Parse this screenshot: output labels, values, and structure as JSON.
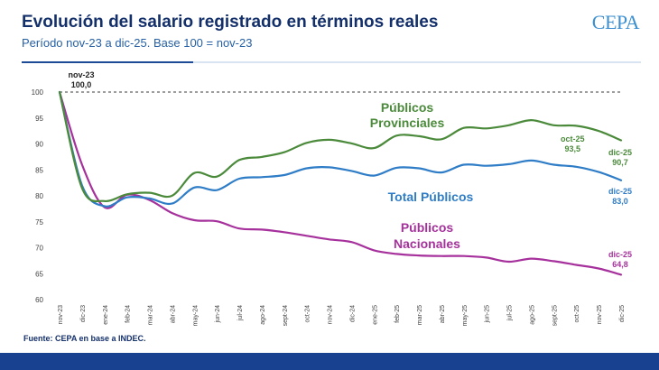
{
  "header": {
    "title": "Evolución del salario registrado en términos reales",
    "subtitle": "Período nov-23 a dic-25. Base 100 = nov-23",
    "logo_text": "CEPA"
  },
  "footer": {
    "source": "Fuente: CEPA en base a INDEC."
  },
  "colors": {
    "provinciales": "#4a8a3a",
    "total": "#2f7dc7",
    "nacionales": "#a6319c",
    "base": "#7f7f7f",
    "axis_text": "#404040",
    "title": "#14306b"
  },
  "chart_data": {
    "type": "line",
    "categories": [
      "nov-23",
      "dic-23",
      "ene-24",
      "feb-24",
      "mar-24",
      "abr-24",
      "may-24",
      "jun-24",
      "jul-24",
      "ago-24",
      "sept-24",
      "oct-24",
      "nov-24",
      "dic-24",
      "ene-25",
      "feb-25",
      "mar-25",
      "abr-25",
      "may-25",
      "jun-25",
      "jul-25",
      "ago-25",
      "sept-25",
      "oct-25",
      "nov-25",
      "dic-25"
    ],
    "ylim": [
      60,
      100
    ],
    "yticks": [
      "60",
      "65",
      "70",
      "75",
      "80",
      "85",
      "90",
      "95",
      "100"
    ],
    "series": [
      {
        "name": "Públicos Provinciales",
        "color_key": "provinciales",
        "values": [
          100,
          81.5,
          79.0,
          80.3,
          80.6,
          80.0,
          84.4,
          83.7,
          86.9,
          87.5,
          88.4,
          90.2,
          90.8,
          90.1,
          89.2,
          91.6,
          91.5,
          90.9,
          93.1,
          93.0,
          93.6,
          94.6,
          93.6,
          93.5,
          92.5,
          90.7
        ]
      },
      {
        "name": "Total Públicos",
        "color_key": "total",
        "values": [
          100,
          82.0,
          78.0,
          79.7,
          79.5,
          78.5,
          81.6,
          81.1,
          83.3,
          83.6,
          84.0,
          85.3,
          85.5,
          84.8,
          83.9,
          85.4,
          85.3,
          84.5,
          86.0,
          85.8,
          86.1,
          86.8,
          86.0,
          85.6,
          84.6,
          83.0
        ]
      },
      {
        "name": "Públicos Nacionales",
        "color_key": "nacionales",
        "values": [
          100,
          86.0,
          77.8,
          80.2,
          79.2,
          76.7,
          75.3,
          75.1,
          73.7,
          73.5,
          73.0,
          72.3,
          71.6,
          71.1,
          69.5,
          68.8,
          68.5,
          68.4,
          68.4,
          68.1,
          67.3,
          67.9,
          67.4,
          66.7,
          66.0,
          64.8
        ]
      }
    ],
    "base_line": {
      "value": 100
    },
    "series_labels": {
      "provinciales": [
        "Públicos",
        "Provinciales"
      ],
      "total": "Total Públicos",
      "nacionales": [
        "Públicos",
        "Nacionales"
      ]
    },
    "annotations": {
      "start": {
        "date": "nov-23",
        "value": "100,0"
      },
      "oct25": {
        "date": "oct-25",
        "value": "93,5"
      },
      "dic25_provinciales": {
        "date": "dic-25",
        "value": "90,7"
      },
      "dic25_total": {
        "date": "dic-25",
        "value": "83,0"
      },
      "dic25_nacionales": {
        "date": "dic-25",
        "value": "64,8"
      }
    }
  }
}
